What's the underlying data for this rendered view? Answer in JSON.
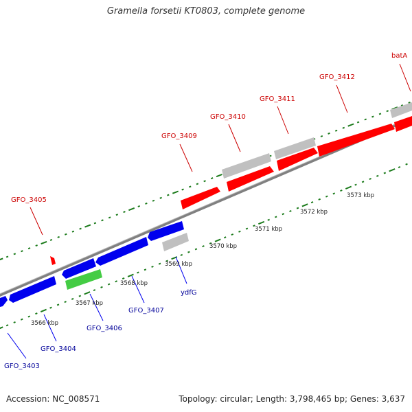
{
  "title": "Gramella forsetii KT0803, complete genome",
  "footer": {
    "accession": "Accession: NC_008571",
    "summary": "Topology: circular; Length: 3,798,465 bp; Genes: 3,637"
  },
  "colors": {
    "backbone": "#808080",
    "tick": "#1a7a1a",
    "forward": "#ff0000",
    "reverse": "#0000ee",
    "rna": "#44cc44",
    "gray_feature": "#c0c0c0",
    "label_forward": "#cc0000",
    "label_reverse": "#000099"
  },
  "scale": {
    "unit": "kbp",
    "labels": [
      "3566 kbp",
      "3567 kbp",
      "3568 kbp",
      "3569 kbp",
      "3570 kbp",
      "3571 kbp",
      "3572 kbp",
      "3573 kbp"
    ]
  },
  "genes": [
    {
      "label": "GFO_3403",
      "strand": "reverse"
    },
    {
      "label": "GFO_3404",
      "strand": "reverse"
    },
    {
      "label": "GFO_3405",
      "strand": "forward"
    },
    {
      "label": "GFO_3406",
      "strand": "reverse"
    },
    {
      "label": "GFO_3407",
      "strand": "reverse"
    },
    {
      "label": "ydfG",
      "strand": "reverse"
    },
    {
      "label": "GFO_3409",
      "strand": "forward"
    },
    {
      "label": "GFO_3410",
      "strand": "forward"
    },
    {
      "label": "GFO_3411",
      "strand": "forward"
    },
    {
      "label": "GFO_3412",
      "strand": "forward"
    },
    {
      "label": "batA",
      "strand": "forward"
    }
  ]
}
